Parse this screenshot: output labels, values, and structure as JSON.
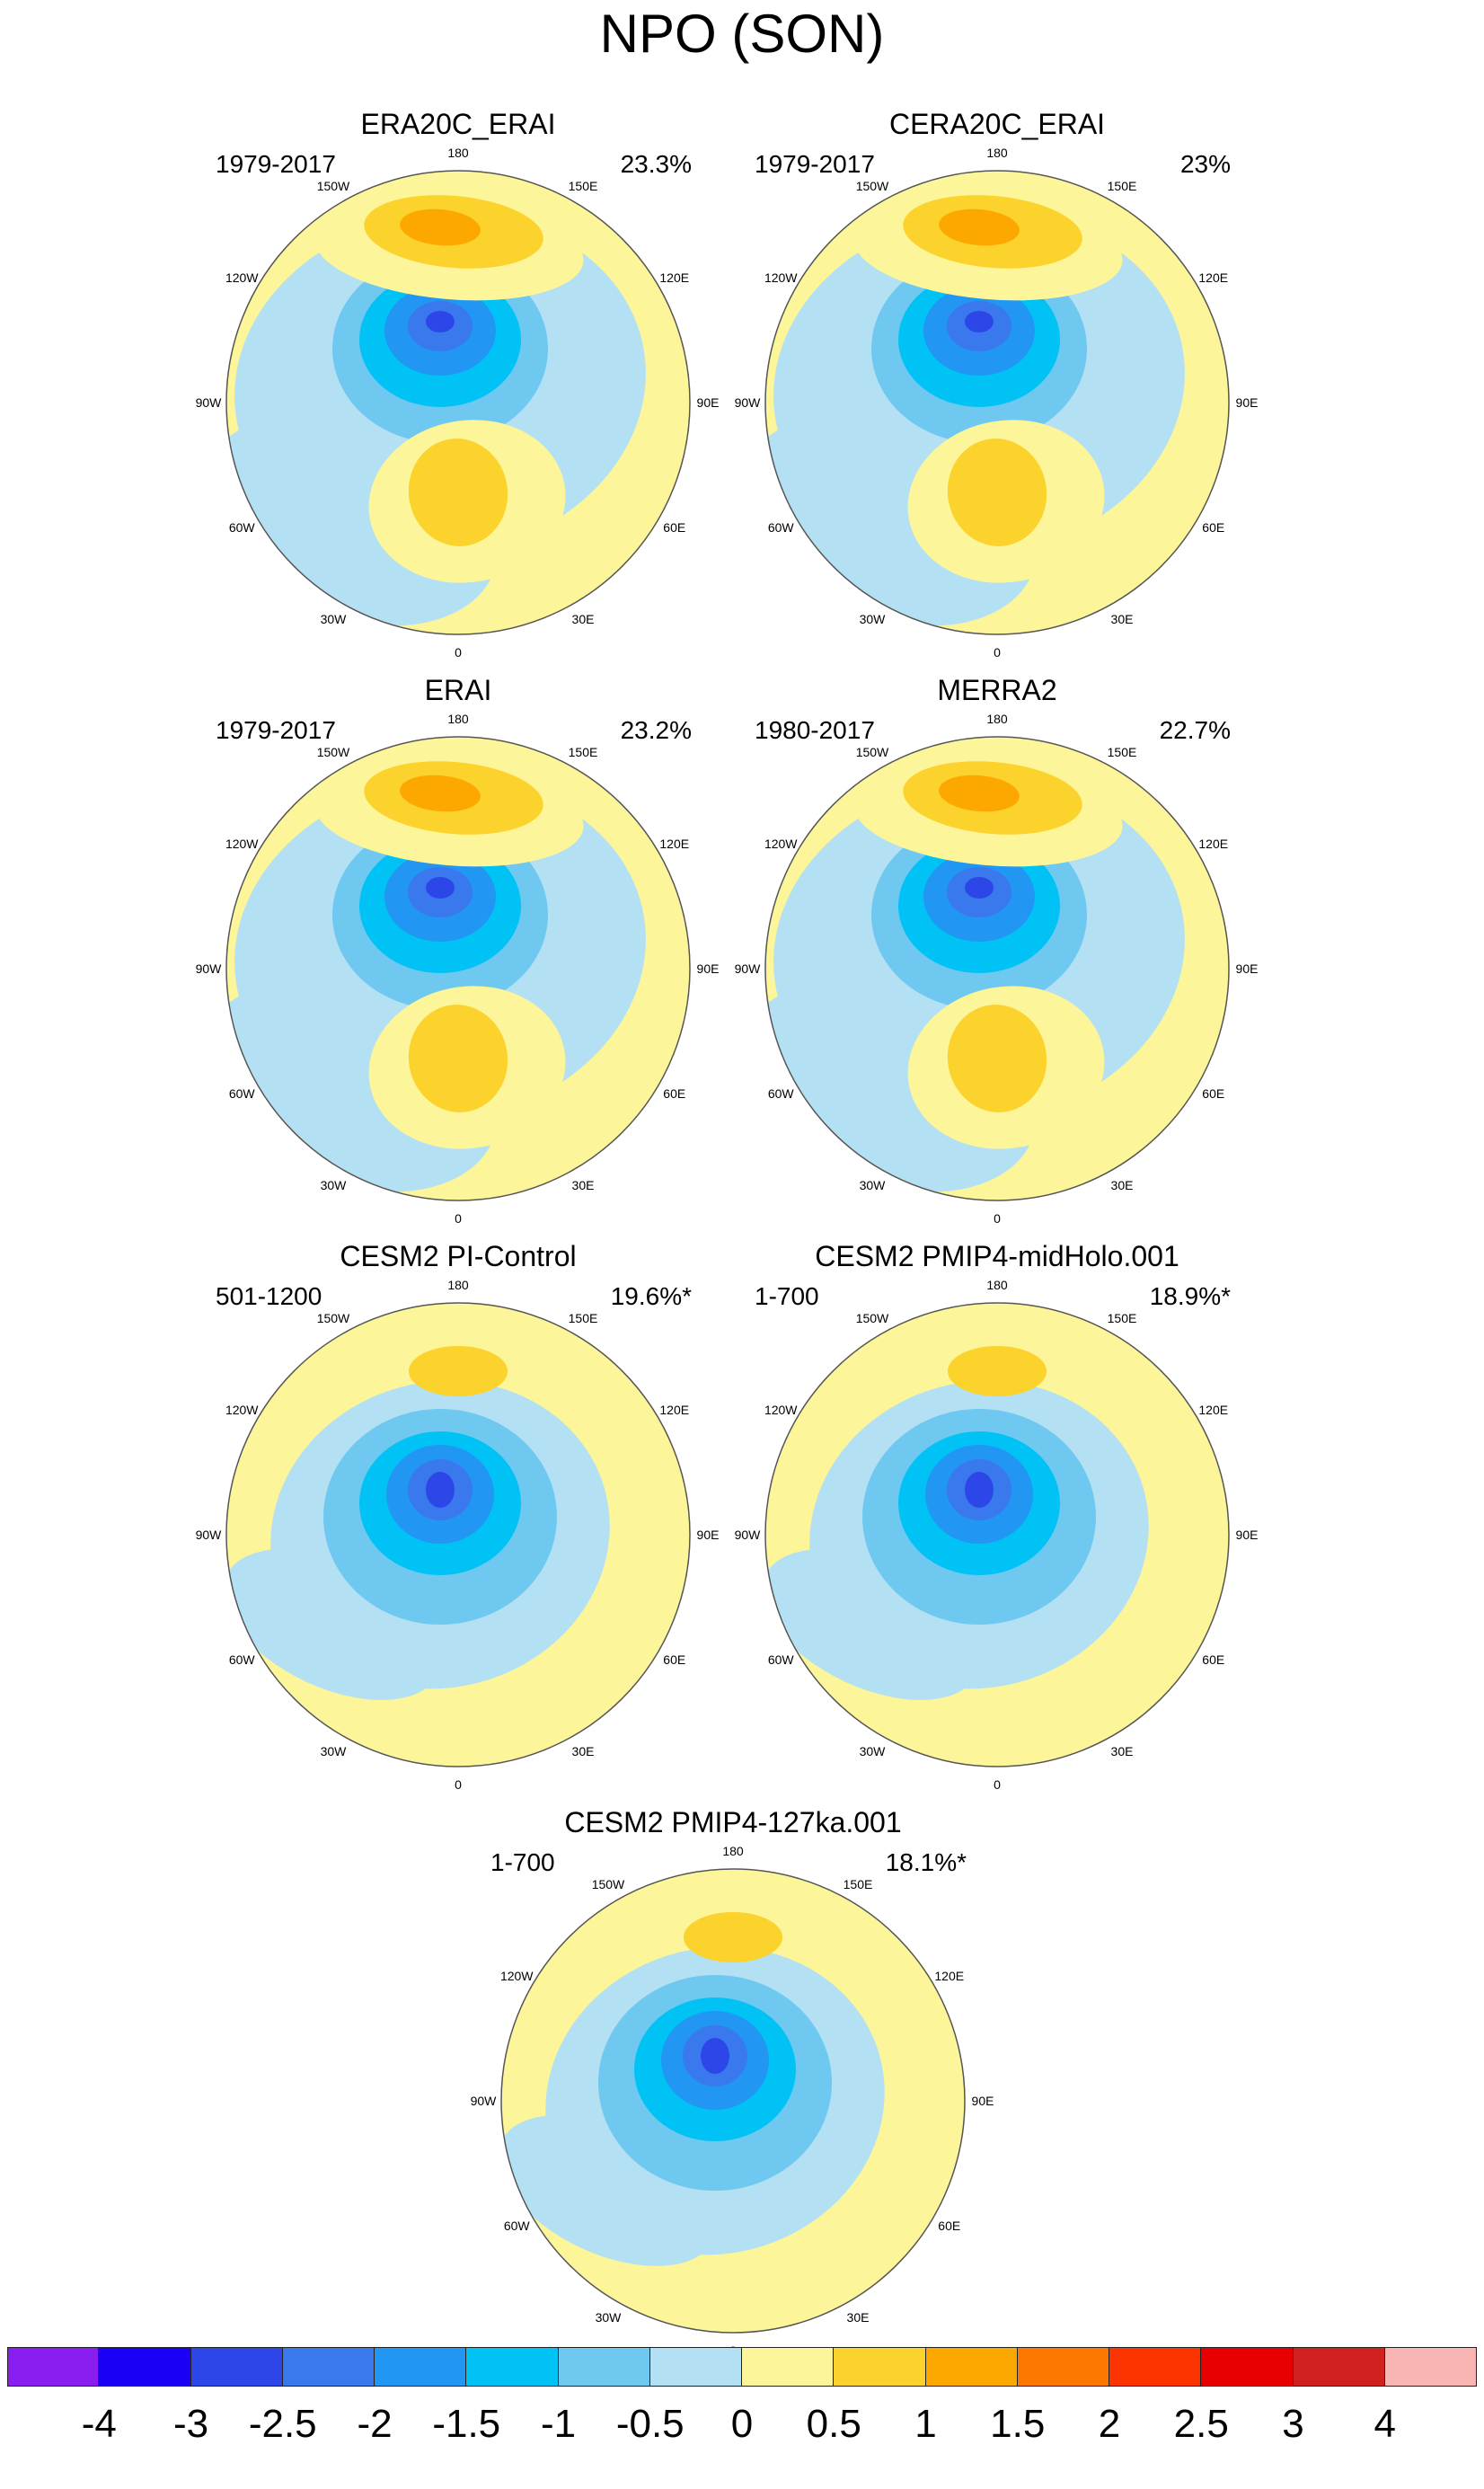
{
  "title": "NPO (SON)",
  "longitude_labels": {
    "180": "180",
    "150E": "150E",
    "120E": "120E",
    "90E": "90E",
    "60E": "60E",
    "30E": "30E",
    "0": "0",
    "30W": "30W",
    "60W": "60W",
    "90W": "90W",
    "120W": "120W",
    "150W": "150W"
  },
  "panels": [
    {
      "title": "ERA20C_ERAI",
      "period": "1979-2017",
      "percent": "23.3%"
    },
    {
      "title": "CERA20C_ERAI",
      "period": "1979-2017",
      "percent": "23%"
    },
    {
      "title": "ERAI",
      "period": "1979-2017",
      "percent": "23.2%"
    },
    {
      "title": "MERRA2",
      "period": "1980-2017",
      "percent": "22.7%"
    },
    {
      "title": "CESM2 PI-Control",
      "period": "501-1200",
      "percent": "19.6%*"
    },
    {
      "title": "CESM2 PMIP4-midHolo.001",
      "period": "1-700",
      "percent": "18.9%*"
    },
    {
      "title": "CESM2 PMIP4-127ka.001",
      "period": "1-700",
      "percent": "18.1%*"
    }
  ],
  "colorbar": {
    "colors": [
      "#8a1ef0",
      "#1a00f5",
      "#2d46e8",
      "#3a78ee",
      "#2196f3",
      "#00c2f5",
      "#6fc8f0",
      "#b4e0f4",
      "#fcf59a",
      "#fcd22c",
      "#fca800",
      "#fc7800",
      "#fc3400",
      "#e80000",
      "#d02020",
      "#f9b4b4"
    ],
    "labels": [
      "-4",
      "-3",
      "-2.5",
      "-2",
      "-1.5",
      "-1",
      "-0.5",
      "0",
      "0.5",
      "1",
      "1.5",
      "2",
      "2.5",
      "3",
      "4"
    ]
  }
}
